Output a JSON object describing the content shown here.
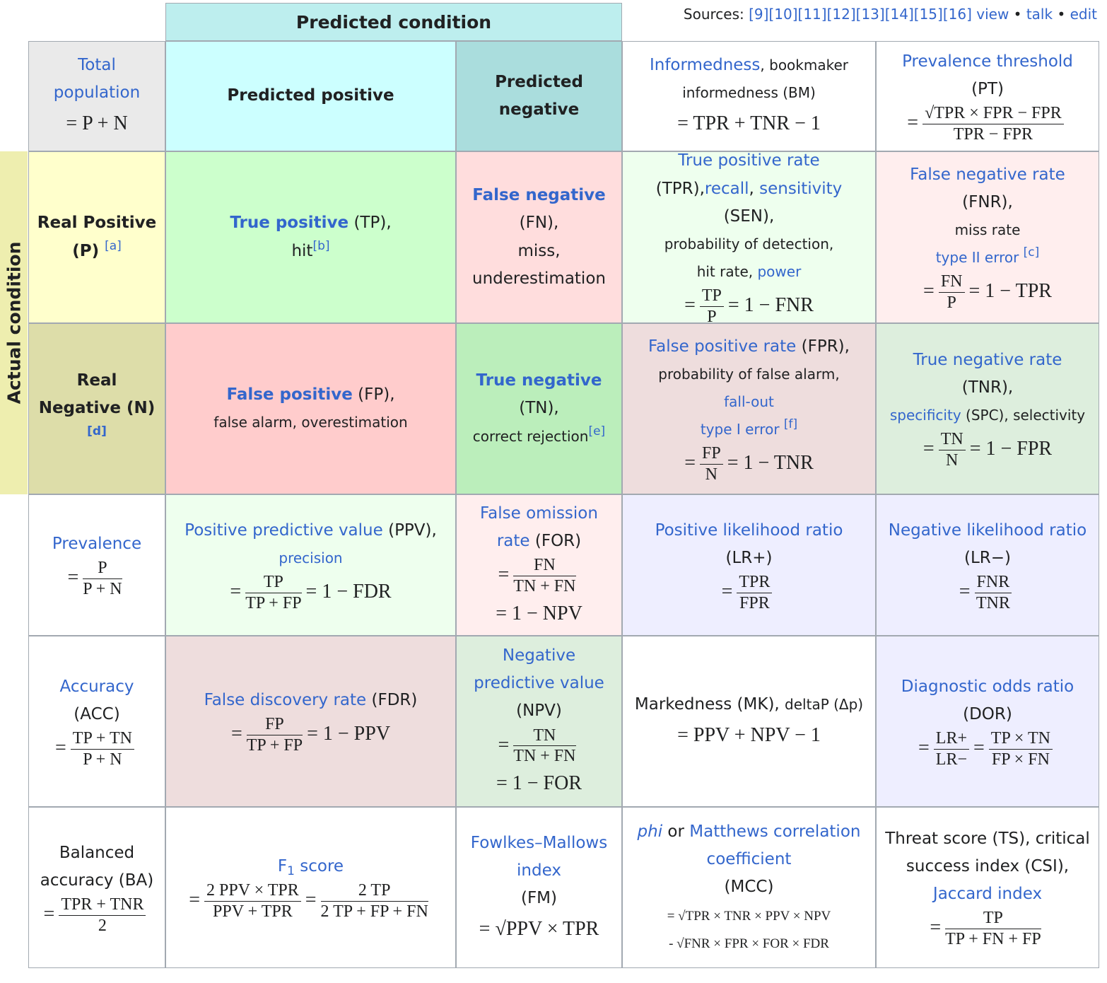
{
  "sources": {
    "label": "Sources:",
    "refs": [
      "[9]",
      "[10]",
      "[11]",
      "[12]",
      "[13]",
      "[14]",
      "[15]",
      "[16]"
    ],
    "links": [
      "view",
      "talk",
      "edit"
    ],
    "separator": "•"
  },
  "header": {
    "predicted_condition": "Predicted condition",
    "actual_condition": "Actual condition"
  },
  "rows": [
    [
      [
        "Total population",
        "= P + N"
      ],
      [
        "Predicted positive"
      ],
      [
        "Predicted negative"
      ],
      [
        "Informedness",
        ", bookmaker informedness (BM)",
        "= TPR + TNR − 1"
      ],
      [
        "Prevalence threshold",
        "(PT)",
        "=",
        "√TPR × FPR − FPR",
        "TPR − FPR"
      ]
    ],
    [
      [
        "Real Positive (P) ",
        "[a]"
      ],
      [
        "True positive",
        " (TP),",
        "hit",
        "[b]"
      ],
      [
        "False negative",
        "(FN),",
        "miss,",
        "underestimation"
      ],
      [
        "True positive rate",
        " (TPR),",
        "recall",
        ", ",
        "sensitivity",
        " (SEN),",
        "probability of detection,",
        "hit rate, ",
        "power",
        "=",
        "TP",
        "P",
        "= 1 − FNR"
      ],
      [
        "False negative rate",
        "(FNR),",
        "miss rate",
        "type II error ",
        "[c]",
        "=",
        "FN",
        "P",
        "= 1 − TPR"
      ]
    ],
    [
      [
        "Real Negative (N)",
        "[d]"
      ],
      [
        "False positive",
        " (FP),",
        "false alarm, overestimation"
      ],
      [
        "True negative",
        "(TN),",
        "correct rejection",
        "[e]"
      ],
      [
        "False positive rate",
        " (FPR),",
        "probability of false alarm,",
        "fall-out",
        "type I error ",
        "[f]",
        "=",
        "FP",
        "N",
        "= 1 − TNR"
      ],
      [
        "True negative rate",
        "(TNR),",
        "specificity",
        " (SPC), selectivity",
        "=",
        "TN",
        "N",
        "= 1 − FPR"
      ]
    ],
    [
      [
        "Prevalence",
        "=",
        "P",
        "P + N"
      ],
      [
        "Positive predictive value",
        " (PPV),",
        "precision",
        "=",
        "TP",
        "TP + FP",
        "= 1 − FDR"
      ],
      [
        "False omission rate",
        " (FOR)",
        "=",
        "FN",
        "TN + FN",
        "= 1 − NPV"
      ],
      [
        "Positive likelihood ratio",
        "(LR+)",
        "=",
        "TPR",
        "FPR"
      ],
      [
        "Negative likelihood ratio",
        " (LR−)",
        "=",
        "FNR",
        "TNR"
      ]
    ],
    [
      [
        "Accuracy",
        "(ACC)",
        "=",
        "TP + TN",
        "P + N"
      ],
      [
        "False discovery rate",
        " (FDR)",
        "=",
        "FP",
        "TP + FP",
        "= 1 − PPV"
      ],
      [
        "Negative predictive value",
        "(NPV)",
        "=",
        "TN",
        "TN + FN",
        "= 1 − FOR"
      ],
      [
        "Markedness (MK), ",
        "deltaP (Δp)",
        "= PPV + NPV − 1"
      ],
      [
        "Diagnostic odds ratio",
        "(DOR)",
        "=",
        "LR+",
        "LR−",
        "=",
        "TP × TN",
        "FP × FN"
      ]
    ],
    [
      [
        "Balanced accuracy (BA)",
        "=",
        "TPR + TNR",
        "2"
      ],
      [
        "F",
        "1",
        " score",
        "=",
        "2 PPV × TPR",
        "PPV + TPR",
        "=",
        "2 TP",
        "2 TP + FP + FN"
      ],
      [
        "Fowlkes–Mallows index",
        "(FM)",
        "= √PPV × TPR"
      ],
      [
        "phi",
        " or ",
        "Matthews correlation coefficient",
        "(MCC)",
        "= √TPR × TNR × PPV × NPV",
        "- √FNR × FPR × FOR × FDR"
      ],
      [
        "Threat score (TS), critical success index (CSI), ",
        "Jaccard index",
        "=",
        "TP",
        "TP + FN + FP"
      ]
    ]
  ]
}
